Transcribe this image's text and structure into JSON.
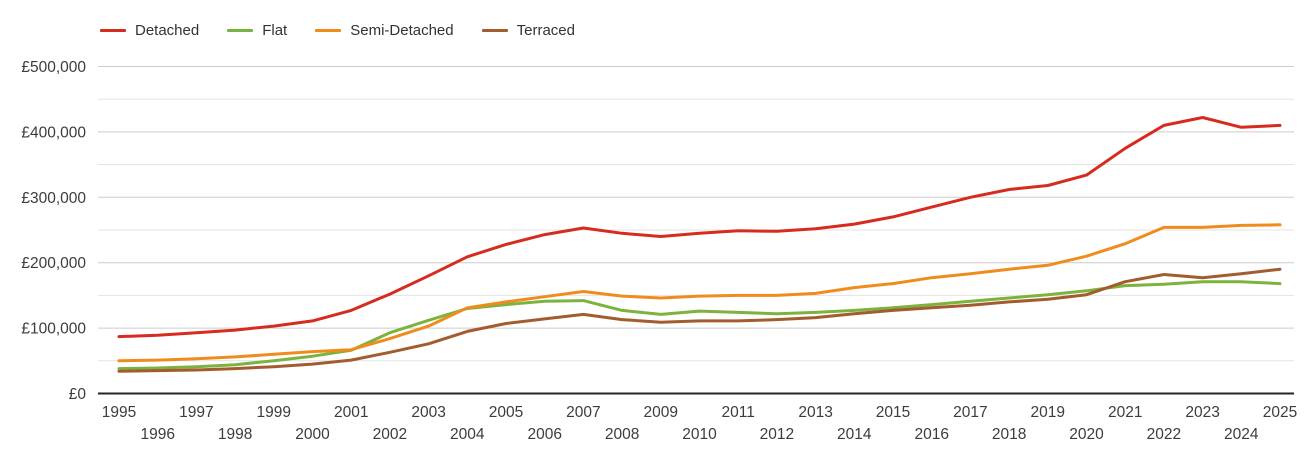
{
  "chart_data": {
    "type": "line",
    "title": "",
    "xlabel": "",
    "ylabel": "",
    "legend_position": "top-left",
    "grid": true,
    "currency_prefix": "£",
    "ylim": [
      0,
      500000
    ],
    "y_gridline_step": 50000,
    "y_label_step": 100000,
    "y_tick_labels": [
      "£0",
      "£100,000",
      "£200,000",
      "£300,000",
      "£400,000",
      "£500,000"
    ],
    "x": [
      1995,
      1996,
      1997,
      1998,
      1999,
      2000,
      2001,
      2002,
      2003,
      2004,
      2005,
      2006,
      2007,
      2008,
      2009,
      2010,
      2011,
      2012,
      2013,
      2014,
      2015,
      2016,
      2017,
      2018,
      2019,
      2020,
      2021,
      2022,
      2023,
      2024,
      2025
    ],
    "series": [
      {
        "name": "Detached",
        "color": "#d62b1f",
        "values": [
          87000,
          89000,
          93000,
          97000,
          103000,
          111000,
          127000,
          152000,
          180000,
          209000,
          228000,
          243000,
          253000,
          245000,
          240000,
          245000,
          249000,
          248000,
          252000,
          259000,
          270000,
          285000,
          300000,
          312000,
          318000,
          334000,
          375000,
          410000,
          422000,
          407000,
          410000
        ]
      },
      {
        "name": "Flat",
        "color": "#7cb33e",
        "values": [
          38000,
          39000,
          41000,
          44000,
          50000,
          57000,
          66000,
          93000,
          112000,
          130000,
          136000,
          141000,
          142000,
          127000,
          121000,
          126000,
          124000,
          122000,
          124000,
          127000,
          131000,
          136000,
          141000,
          146000,
          151000,
          157000,
          165000,
          167000,
          171000,
          171000,
          168000
        ]
      },
      {
        "name": "Semi-Detached",
        "color": "#f08c1d",
        "values": [
          50000,
          51000,
          53000,
          56000,
          60000,
          64000,
          67000,
          84000,
          103000,
          131000,
          140000,
          148000,
          156000,
          149000,
          146000,
          149000,
          150000,
          150000,
          153000,
          162000,
          168000,
          177000,
          183000,
          190000,
          196000,
          210000,
          229000,
          254000,
          254000,
          257000,
          258000
        ]
      },
      {
        "name": "Terraced",
        "color": "#a25c2e",
        "values": [
          34000,
          35000,
          36000,
          38000,
          41000,
          45000,
          51000,
          63000,
          76000,
          95000,
          107000,
          114000,
          121000,
          113000,
          109000,
          111000,
          111000,
          113000,
          116000,
          122000,
          127000,
          131000,
          135000,
          140000,
          144000,
          151000,
          171000,
          182000,
          177000,
          183000,
          190000
        ]
      }
    ],
    "axis_color": "#262626",
    "major_grid_color": "#cccccc",
    "minor_grid_color": "#e3e3e3",
    "tick_label_color": "#3c3c3c"
  }
}
